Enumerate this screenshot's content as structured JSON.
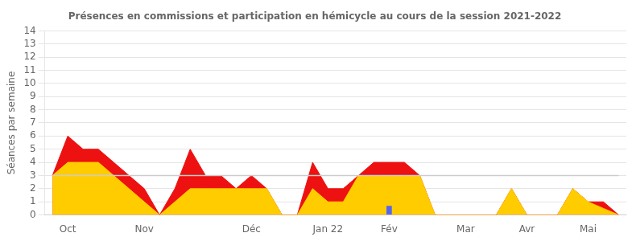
{
  "chart_data": {
    "type": "area",
    "title": "Présences en commissions et participation en hémicycle au cours de la session 2021-2022",
    "ylabel": "Séances par semaine",
    "categories": [
      null,
      "Oct",
      null,
      null,
      null,
      null,
      "Nov",
      null,
      null,
      null,
      null,
      null,
      null,
      "Déc",
      null,
      null,
      null,
      null,
      "Jan 22",
      null,
      null,
      null,
      "Fév",
      null,
      null,
      null,
      null,
      "Mar",
      null,
      null,
      null,
      "Avr",
      null,
      null,
      null,
      "Mai",
      null,
      null
    ],
    "series": [
      {
        "type": "area",
        "color": "#ee1111",
        "values": [
          3,
          6,
          5,
          5,
          4,
          3,
          2,
          0,
          2,
          5,
          3,
          3,
          2,
          3,
          2,
          0,
          0,
          4,
          2,
          2,
          3,
          4,
          4,
          4,
          3,
          0,
          0,
          0,
          0,
          0,
          2,
          0,
          0,
          0,
          2,
          1,
          1,
          0
        ]
      },
      {
        "type": "area",
        "color": "#ffcc00",
        "values": [
          3,
          4,
          4,
          4,
          3,
          2,
          1,
          0,
          1,
          2,
          2,
          2,
          2,
          2,
          2,
          0,
          0,
          2,
          1,
          1,
          3,
          3,
          3,
          3,
          3,
          0,
          0,
          0,
          0,
          0,
          2,
          0,
          0,
          0,
          2,
          1,
          0.5,
          0
        ]
      },
      {
        "type": "line",
        "color": "#cccccc",
        "values": [
          3,
          3,
          3,
          3,
          3,
          3,
          3,
          3,
          3,
          3,
          3,
          3,
          3,
          3,
          3,
          3,
          3,
          3,
          3,
          3,
          3,
          3,
          3,
          3,
          3,
          3,
          3,
          3,
          3,
          3,
          3,
          3,
          3,
          3,
          3,
          3,
          3,
          3
        ]
      },
      {
        "type": "bar",
        "color": "#5566ee",
        "values": [
          null,
          null,
          null,
          null,
          null,
          null,
          null,
          null,
          null,
          null,
          null,
          null,
          null,
          null,
          null,
          null,
          null,
          null,
          null,
          null,
          null,
          null,
          0.7,
          null,
          null,
          null,
          null,
          null,
          null,
          null,
          null,
          null,
          null,
          null,
          null,
          null,
          null,
          null
        ]
      }
    ],
    "ylim": [
      0,
      14
    ],
    "yticks": [
      0,
      1,
      2,
      3,
      4,
      5,
      6,
      7,
      8,
      9,
      10,
      11,
      12,
      13,
      14
    ],
    "grid": true
  }
}
